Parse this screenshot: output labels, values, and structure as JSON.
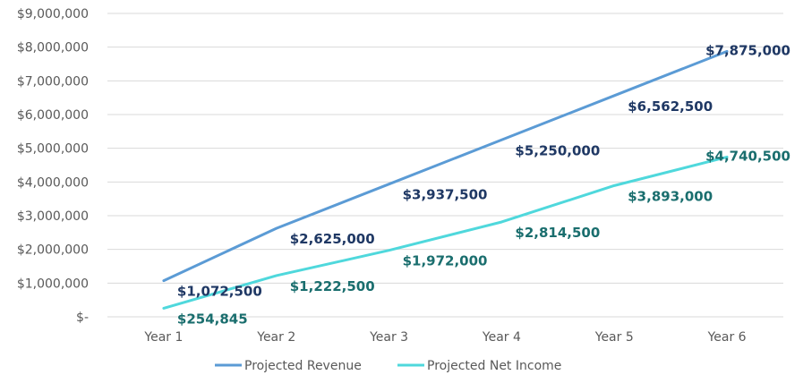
{
  "chart_data": {
    "type": "line",
    "categories": [
      "Year 1",
      "Year 2",
      "Year 3",
      "Year 4",
      "Year 5",
      "Year 6"
    ],
    "series": [
      {
        "name": "Projected Revenue",
        "color": "#5b9bd5",
        "label_color": "#1f3864",
        "values": [
          1072500,
          2625000,
          3937500,
          5250000,
          6562500,
          7875000
        ],
        "labels": [
          "$1,072,500",
          "$2,625,000",
          "$3,937,500",
          "$5,250,000",
          "$6,562,500",
          "$7,875,000"
        ]
      },
      {
        "name": "Projected Net Income",
        "color": "#4fd8dc",
        "label_color": "#1a6e6e",
        "values": [
          254845,
          1222500,
          1972000,
          2814500,
          3893000,
          4740500
        ],
        "labels": [
          "$254,845",
          "$1,222,500",
          "$1,972,000",
          "$2,814,500",
          "$3,893,000",
          "$4,740,500"
        ]
      }
    ],
    "yticks": [
      0,
      1000000,
      2000000,
      3000000,
      4000000,
      5000000,
      6000000,
      7000000,
      8000000,
      9000000
    ],
    "ytick_labels": [
      "$-",
      "$1,000,000",
      "$2,000,000",
      "$3,000,000",
      "$4,000,000",
      "$5,000,000",
      "$6,000,000",
      "$7,000,000",
      "$8,000,000",
      "$9,000,000"
    ],
    "ylim": [
      0,
      9000000
    ],
    "grid": true,
    "legend_position": "bottom",
    "title": "",
    "xlabel": "",
    "ylabel": ""
  }
}
